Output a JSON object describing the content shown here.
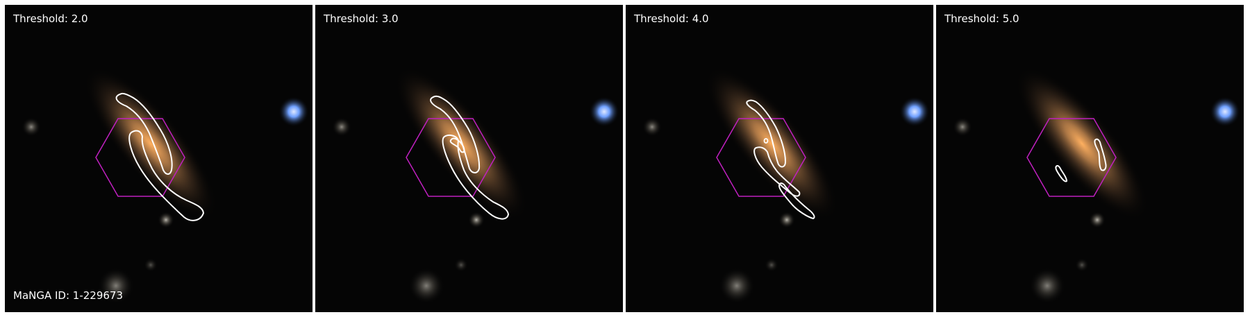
{
  "panels": [
    {
      "label": "Threshold: 2.0",
      "caption": "MaNGA ID: 1-229673"
    },
    {
      "label": "Threshold: 3.0"
    },
    {
      "label": "Threshold: 4.0"
    },
    {
      "label": "Threshold: 5.0"
    }
  ],
  "colors": {
    "background": "#000000",
    "contour": "#ffffff",
    "hexagon": "#c020c0",
    "galaxy_core": "#ffb060",
    "blue_star": "#6fa0ff"
  }
}
